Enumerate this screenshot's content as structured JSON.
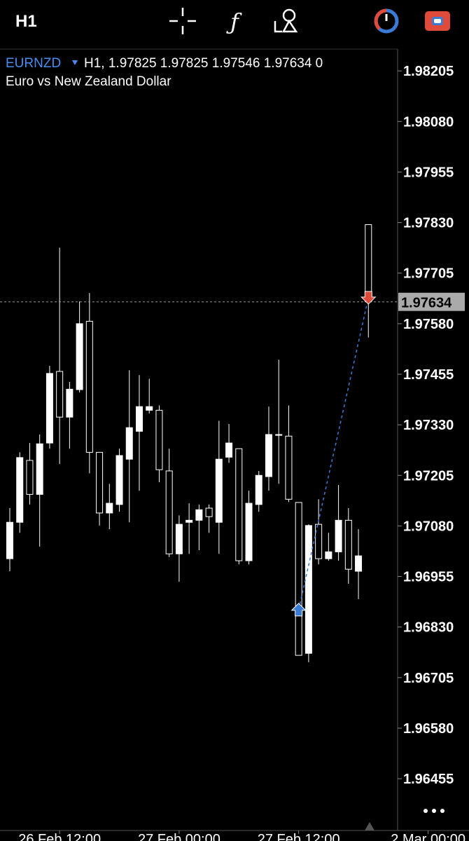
{
  "toolbar": {
    "timeframe": "H1"
  },
  "header": {
    "symbol": "EURNZD",
    "info": "H1, 1.97825 1.97825 1.97546 1.97634 0",
    "description": "Euro vs New Zealand Dollar"
  },
  "chart_data": {
    "type": "candlestick",
    "categories": [
      null,
      null,
      null,
      null,
      null,
      "26 Feb 12:00",
      null,
      null,
      null,
      null,
      null,
      null,
      null,
      null,
      null,
      null,
      null,
      "27 Feb 00:00",
      null,
      null,
      null,
      null,
      null,
      null,
      null,
      null,
      null,
      null,
      null,
      "27 Feb 12:00",
      null,
      null,
      null,
      null,
      null,
      null,
      null,
      null,
      null,
      null,
      null,
      null,
      "2 Mar 00:00"
    ],
    "open": [
      1.96999,
      1.97089,
      1.97242,
      1.97158,
      1.97285,
      1.97462,
      1.97349,
      1.97417,
      1.97586,
      1.97262,
      1.97112,
      1.97133,
      1.97245,
      1.97314,
      1.97366,
      1.97366,
      1.97216,
      1.97011,
      1.97089,
      1.97094,
      1.97124,
      1.97089,
      1.9725,
      1.97271,
      1.96994,
      1.97133,
      1.97202,
      1.97304,
      1.97302,
      1.97138,
      1.96765,
      1.97084,
      1.96999,
      1.97016,
      1.97094,
      1.96968,
      1.97825,
      null,
      null,
      null,
      null,
      null,
      null
    ],
    "high": [
      1.97124,
      1.97262,
      1.97285,
      1.97306,
      1.97476,
      1.97768,
      1.97436,
      1.97635,
      1.97656,
      1.97262,
      1.97184,
      1.97271,
      1.97465,
      1.97453,
      1.97444,
      1.97378,
      1.97271,
      1.97106,
      1.97136,
      1.97133,
      1.97133,
      1.9734,
      1.97332,
      1.97271,
      1.97167,
      1.97216,
      1.97375,
      1.97491,
      1.97378,
      1.97138,
      1.97084,
      1.97146,
      1.97063,
      1.97181,
      1.97124,
      1.97072,
      1.97825,
      null,
      null,
      null,
      null,
      null,
      null
    ],
    "low": [
      1.96968,
      1.97063,
      1.97133,
      1.97029,
      1.97271,
      1.97233,
      1.97271,
      1.9741,
      1.9721,
      1.97081,
      1.97072,
      1.97115,
      1.97089,
      1.97167,
      1.97358,
      1.97188,
      1.97003,
      1.96942,
      1.97011,
      1.9702,
      1.97063,
      1.97011,
      1.97236,
      1.96985,
      1.96985,
      1.97115,
      1.97167,
      1.97184,
      1.97139,
      1.9676,
      1.96743,
      1.96985,
      1.96994,
      1.96994,
      1.96937,
      1.96899,
      1.97546,
      null,
      null,
      null,
      null,
      null,
      null
    ],
    "close": [
      1.97089,
      1.97249,
      1.97158,
      1.97283,
      1.97457,
      1.97349,
      1.97418,
      1.9758,
      1.97262,
      1.97112,
      1.97136,
      1.97254,
      1.97323,
      1.97375,
      1.97375,
      1.97219,
      1.97011,
      1.97084,
      1.97094,
      1.9712,
      1.97103,
      1.97245,
      1.97285,
      1.96994,
      1.97136,
      1.97205,
      1.97306,
      1.97306,
      1.97146,
      1.9676,
      1.97081,
      1.96999,
      1.97016,
      1.97094,
      1.96973,
      1.97006,
      1.97634,
      null,
      null,
      null,
      null,
      null,
      null
    ],
    "ylim": [
      1.96327,
      1.98259
    ],
    "yticks": [
      1.98205,
      {
        "value": 1.9808,
        "label": "1.98080"
      },
      1.97955,
      {
        "value": 1.9783,
        "label": "1.97830"
      },
      1.97705,
      {
        "value": 1.9758,
        "label": "1.97580"
      },
      1.97455,
      {
        "value": 1.9733,
        "label": "1.97330"
      },
      1.97205,
      {
        "value": 1.9708,
        "label": "1.97080"
      },
      1.96955,
      {
        "value": 1.9683,
        "label": "1.96830"
      },
      1.96705,
      {
        "value": 1.9658,
        "label": "1.96580"
      },
      1.96455
    ],
    "current_price": 1.97634,
    "trade": {
      "buy": 1.96873,
      "sell": 1.97644
    },
    "up_color": "#ffffff",
    "down_color": "#000000",
    "wick_color": "#ffffff"
  }
}
